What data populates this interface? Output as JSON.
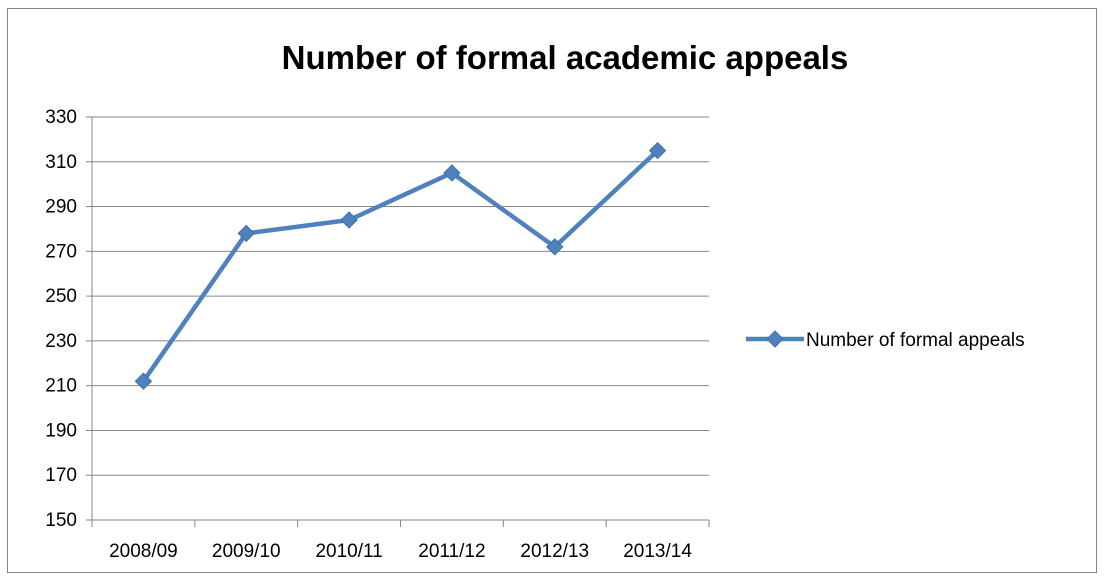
{
  "chart_data": {
    "type": "line",
    "title": "Number of formal academic appeals",
    "xlabel": "",
    "ylabel": "",
    "categories": [
      "2008/09",
      "2009/10",
      "2010/11",
      "2011/12",
      "2012/13",
      "2013/14"
    ],
    "series": [
      {
        "name": "Number of formal appeals",
        "values": [
          212,
          278,
          284,
          305,
          272,
          315
        ],
        "color": "#4f81bd"
      }
    ],
    "ylim": [
      150,
      330
    ],
    "yticks": [
      150,
      170,
      190,
      210,
      230,
      250,
      270,
      290,
      310,
      330
    ],
    "grid": true,
    "legend_position": "right",
    "marker": "diamond"
  }
}
